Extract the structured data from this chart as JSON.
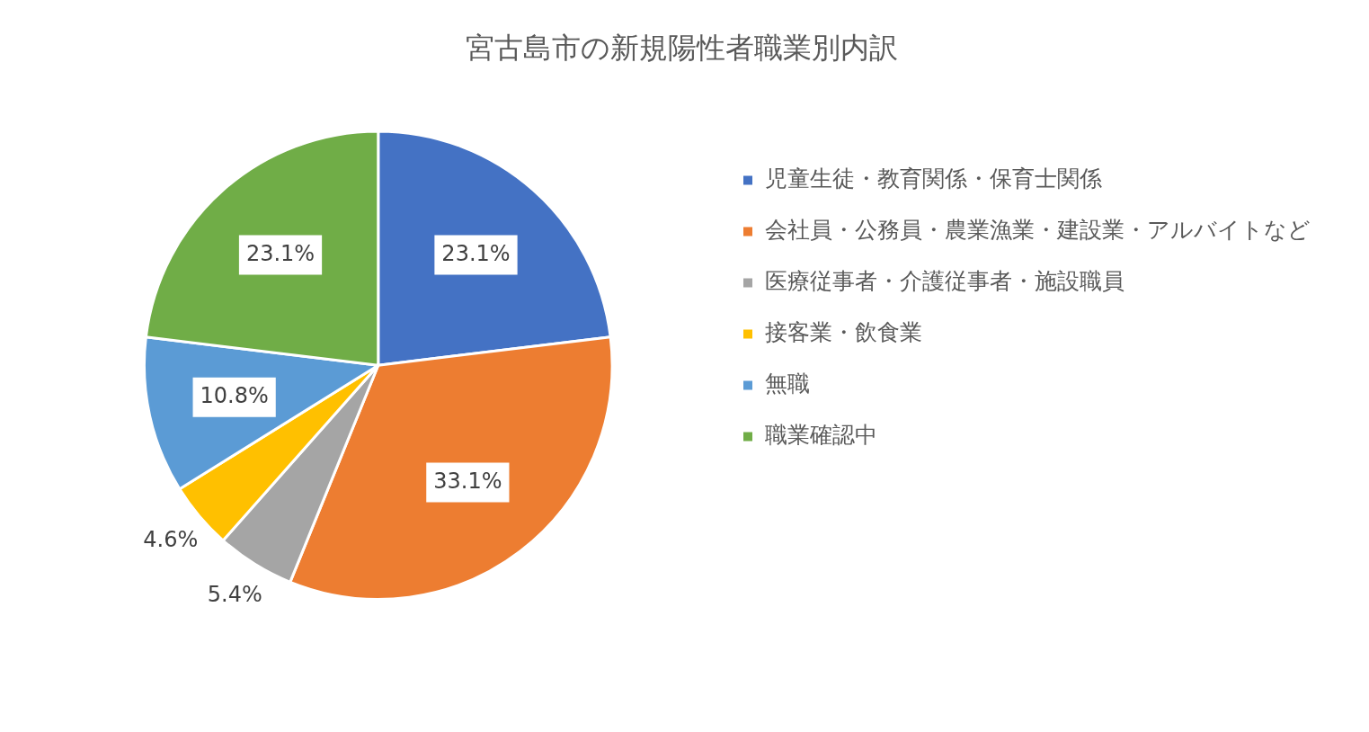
{
  "chart_data": {
    "type": "pie",
    "title": "宮古島市の新規陽性者職業別内訳",
    "categories": [
      "児童生徒・教育関係・保育士関係",
      "会社員・公務員・農業漁業・建設業・アルバイトなど",
      "医療従事者・介護従事者・施設職員",
      "接客業・飲食業",
      "無職",
      "職業確認中"
    ],
    "values": [
      23.1,
      33.1,
      5.4,
      4.6,
      10.8,
      23.1
    ],
    "value_labels": [
      "23.1%",
      "33.1%",
      "5.4%",
      "4.6%",
      "10.8%",
      "23.1%"
    ],
    "colors": [
      "#4472c4",
      "#ed7d31",
      "#a5a5a5",
      "#ffc000",
      "#5b9bd5",
      "#70ad47"
    ],
    "legend": "right"
  }
}
